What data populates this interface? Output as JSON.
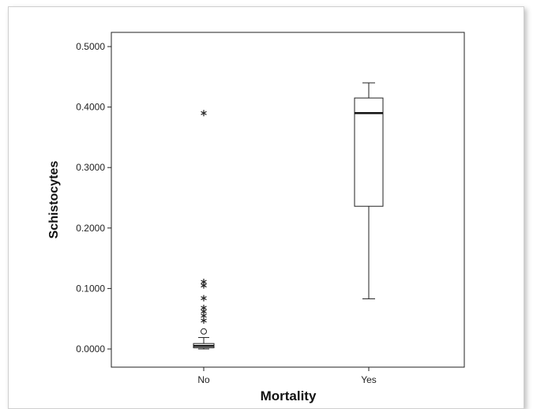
{
  "chart_data": {
    "type": "box",
    "title": "",
    "xlabel": "Mortality",
    "ylabel": "Schistocytes",
    "ylim": [
      -0.03,
      0.53
    ],
    "yticks": [
      0.0,
      0.1,
      0.2,
      0.3,
      0.4,
      0.5
    ],
    "ytick_labels": [
      "0.0000",
      "0.1000",
      "0.2000",
      "0.3000",
      "0.4000",
      "0.5000"
    ],
    "categories": [
      "No",
      "Yes"
    ],
    "boxes": [
      {
        "category": "No",
        "whisker_low": 0.0,
        "q1": 0.002,
        "median": 0.005,
        "q3": 0.009,
        "whisker_high": 0.019,
        "outliers_circle": [
          0.029
        ],
        "outliers_star": [
          0.047,
          0.055,
          0.062,
          0.068,
          0.084,
          0.105,
          0.111,
          0.39
        ]
      },
      {
        "category": "Yes",
        "whisker_low": 0.083,
        "q1": 0.236,
        "median": 0.39,
        "q3": 0.415,
        "whisker_high": 0.44,
        "outliers_circle": [],
        "outliers_star": []
      }
    ],
    "grid": false,
    "legend": "none"
  }
}
